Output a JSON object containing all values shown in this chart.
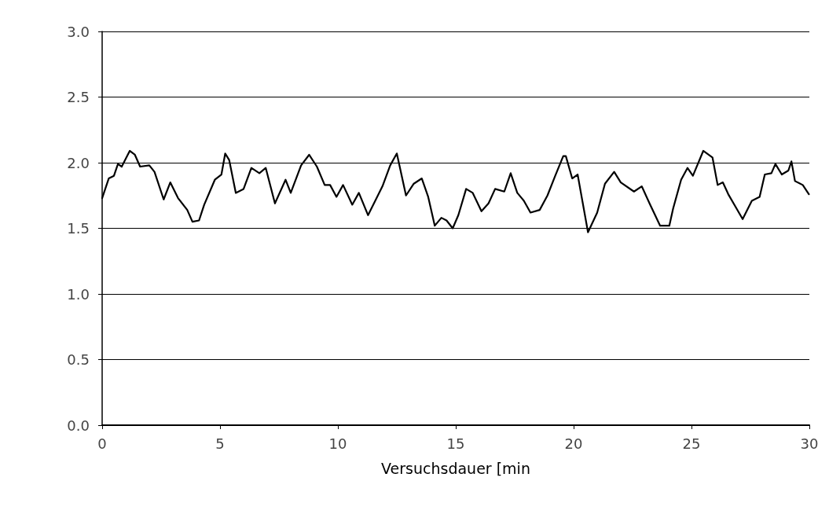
{
  "chart_data": {
    "type": "line",
    "xlabel": "Versuchsdauer [min",
    "series": [
      {
        "color": "#000000",
        "x": [
          0,
          0.28,
          0.5,
          0.67,
          0.83,
          1.17,
          1.39,
          1.61,
          2.0,
          2.22,
          2.61,
          2.89,
          3.22,
          3.61,
          3.83,
          4.11,
          4.33,
          4.78,
          5.06,
          5.22,
          5.39,
          5.67,
          6.0,
          6.33,
          6.67,
          6.94,
          7.33,
          7.78,
          8.0,
          8.44,
          8.78,
          9.11,
          9.44,
          9.67,
          9.94,
          10.22,
          10.61,
          10.89,
          11.28,
          11.89,
          12.22,
          12.5,
          12.89,
          13.22,
          13.56,
          13.83,
          14.11,
          14.39,
          14.61,
          14.87,
          15.11,
          15.44,
          15.72,
          16.09,
          16.39,
          16.67,
          17.06,
          17.33,
          17.61,
          17.89,
          18.17,
          18.56,
          18.89,
          19.22,
          19.56,
          19.67,
          19.94,
          20.17,
          20.61,
          21.0,
          21.33,
          21.72,
          22.0,
          22.56,
          22.89,
          23.22,
          23.67,
          24.06,
          24.22,
          24.56,
          24.83,
          25.06,
          25.5,
          25.89,
          26.11,
          26.33,
          26.56,
          27.17,
          27.56,
          27.89,
          28.11,
          28.39,
          28.56,
          28.83,
          29.11,
          29.24,
          29.39,
          29.72,
          29.98
        ],
        "values": [
          1.73,
          1.88,
          1.9,
          1.99,
          1.97,
          2.09,
          2.06,
          1.97,
          1.98,
          1.93,
          1.72,
          1.85,
          1.73,
          1.64,
          1.55,
          1.56,
          1.68,
          1.87,
          1.91,
          2.07,
          2.02,
          1.77,
          1.8,
          1.96,
          1.92,
          1.96,
          1.69,
          1.87,
          1.77,
          1.98,
          2.06,
          1.97,
          1.83,
          1.83,
          1.74,
          1.83,
          1.68,
          1.77,
          1.6,
          1.82,
          1.98,
          2.07,
          1.75,
          1.84,
          1.88,
          1.74,
          1.52,
          1.58,
          1.56,
          1.5,
          1.6,
          1.8,
          1.77,
          1.63,
          1.69,
          1.8,
          1.78,
          1.92,
          1.77,
          1.71,
          1.62,
          1.64,
          1.75,
          1.9,
          2.05,
          2.05,
          1.88,
          1.91,
          1.47,
          1.62,
          1.84,
          1.93,
          1.85,
          1.78,
          1.82,
          1.69,
          1.52,
          1.52,
          1.65,
          1.87,
          1.96,
          1.9,
          2.09,
          2.04,
          1.83,
          1.85,
          1.76,
          1.57,
          1.71,
          1.74,
          1.91,
          1.92,
          1.99,
          1.91,
          1.94,
          2.01,
          1.86,
          1.83,
          1.76
        ]
      }
    ],
    "xlim": [
      0,
      30
    ],
    "xticks": [
      0,
      5,
      10,
      15,
      20,
      25,
      30
    ],
    "ylim": [
      0,
      3
    ],
    "yticks": [
      {
        "value": 0,
        "label": "0.0"
      },
      {
        "value": 0.5,
        "label": "0.5"
      },
      {
        "value": 1,
        "label": "1.0"
      },
      {
        "value": 1.5,
        "label": "1.5"
      },
      {
        "value": 2,
        "label": "2.0"
      },
      {
        "value": 2.5,
        "label": "2.5"
      },
      {
        "value": 3,
        "label": "3.0"
      }
    ],
    "grid": "y",
    "marker": "none",
    "line_style": "solid"
  }
}
